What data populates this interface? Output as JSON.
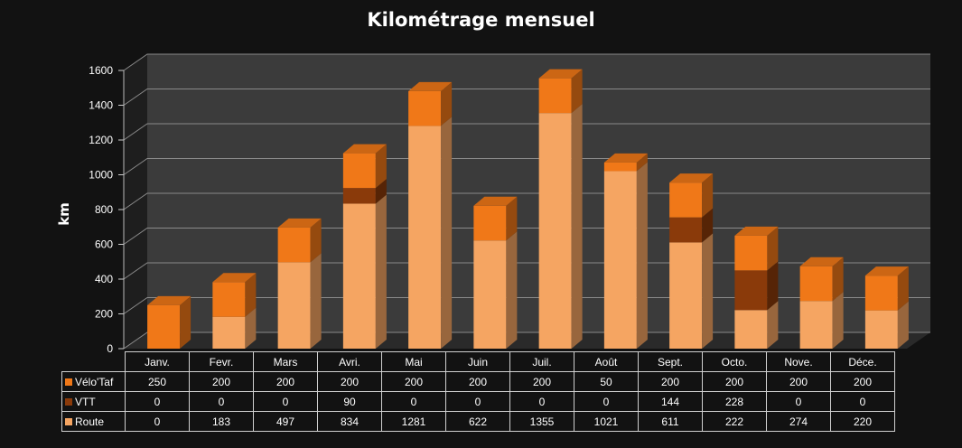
{
  "chart_data": {
    "type": "bar",
    "stacked": true,
    "title": "Kilométrage mensuel",
    "ylabel": "km",
    "xlabel": "",
    "ylim": [
      0,
      1600
    ],
    "yticks": [
      "0",
      "200",
      "400",
      "600",
      "800",
      "1000",
      "1200",
      "1400",
      "1600"
    ],
    "grid": true,
    "legend": "data-table",
    "categories": [
      "Janv.",
      "Fevr.",
      "Mars",
      "Avri.",
      "Mai",
      "Juin",
      "Juil.",
      "Août",
      "Sept.",
      "Octo.",
      "Nove.",
      "Déce."
    ],
    "series": [
      {
        "name": "Route",
        "color": "#f5a562",
        "values": [
          0,
          183,
          497,
          834,
          1281,
          622,
          1355,
          1021,
          611,
          222,
          274,
          220
        ]
      },
      {
        "name": "VTT",
        "color": "#8a3a0a",
        "values": [
          0,
          0,
          0,
          90,
          0,
          0,
          0,
          0,
          144,
          228,
          0,
          0
        ]
      },
      {
        "name": "Vélo'Taf",
        "color": "#f07818",
        "values": [
          250,
          200,
          200,
          200,
          200,
          200,
          200,
          50,
          200,
          200,
          200,
          200
        ]
      }
    ]
  }
}
